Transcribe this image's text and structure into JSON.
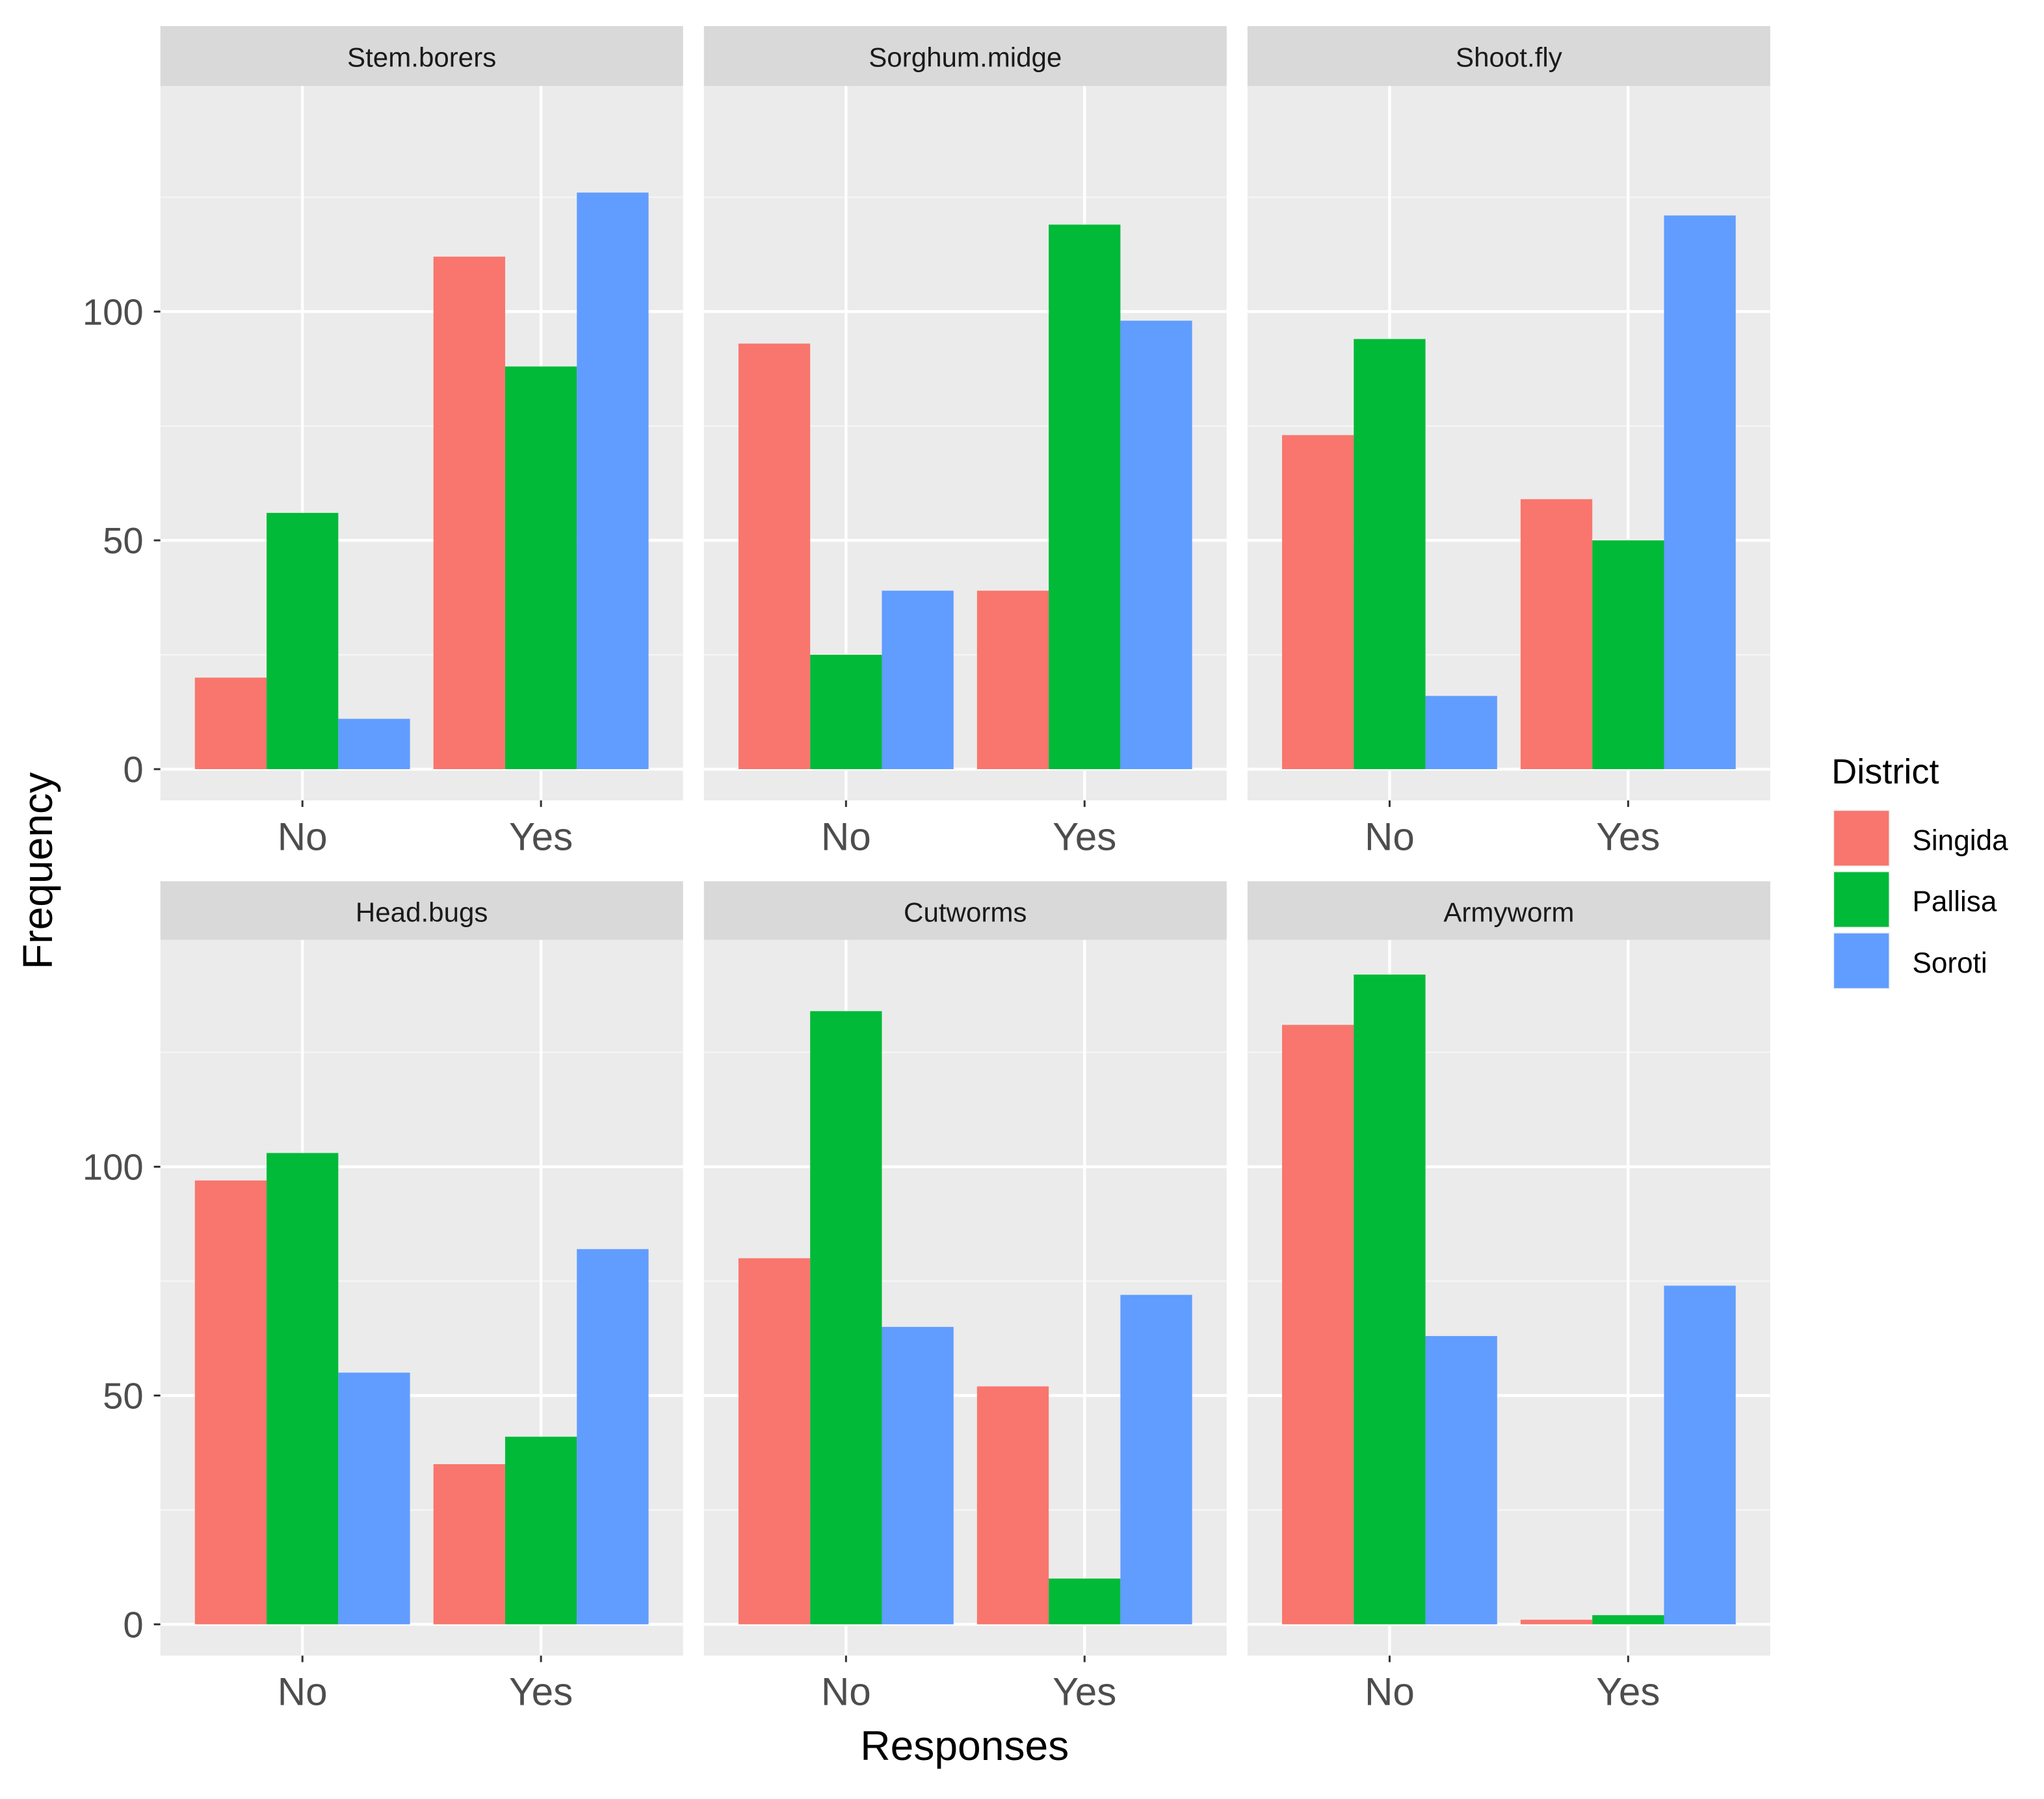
{
  "chart_data": {
    "type": "bar",
    "layout": "facet-grid 2x3, dodged bars",
    "xlabel": "Responses",
    "ylabel": "Frequency",
    "categories": [
      "No",
      "Yes"
    ],
    "ylim": [
      0,
      150
    ],
    "yticks": [
      0,
      50,
      100
    ],
    "grid": true,
    "legend": {
      "title": "District",
      "position": "right",
      "entries": [
        "Singida",
        "Pallisa",
        "Soroti"
      ]
    },
    "colors": {
      "Singida": "#F8766D",
      "Pallisa": "#00BA38",
      "Soroti": "#619CFF"
    },
    "panels": [
      {
        "title": "Stem.borers",
        "series": [
          {
            "name": "Singida",
            "values": [
              20,
              112
            ]
          },
          {
            "name": "Pallisa",
            "values": [
              56,
              88
            ]
          },
          {
            "name": "Soroti",
            "values": [
              11,
              126
            ]
          }
        ]
      },
      {
        "title": "Sorghum.midge",
        "series": [
          {
            "name": "Singida",
            "values": [
              93,
              39
            ]
          },
          {
            "name": "Pallisa",
            "values": [
              25,
              119
            ]
          },
          {
            "name": "Soroti",
            "values": [
              39,
              98
            ]
          }
        ]
      },
      {
        "title": "Shoot.fly",
        "series": [
          {
            "name": "Singida",
            "values": [
              73,
              59
            ]
          },
          {
            "name": "Pallisa",
            "values": [
              94,
              50
            ]
          },
          {
            "name": "Soroti",
            "values": [
              16,
              121
            ]
          }
        ]
      },
      {
        "title": "Head.bugs",
        "series": [
          {
            "name": "Singida",
            "values": [
              97,
              35
            ]
          },
          {
            "name": "Pallisa",
            "values": [
              103,
              41
            ]
          },
          {
            "name": "Soroti",
            "values": [
              55,
              82
            ]
          }
        ]
      },
      {
        "title": "Cutworms",
        "series": [
          {
            "name": "Singida",
            "values": [
              80,
              52
            ]
          },
          {
            "name": "Pallisa",
            "values": [
              134,
              10
            ]
          },
          {
            "name": "Soroti",
            "values": [
              65,
              72
            ]
          }
        ]
      },
      {
        "title": "Armyworm",
        "series": [
          {
            "name": "Singida",
            "values": [
              131,
              1
            ]
          },
          {
            "name": "Pallisa",
            "values": [
              142,
              2
            ]
          },
          {
            "name": "Soroti",
            "values": [
              63,
              74
            ]
          }
        ]
      }
    ]
  }
}
